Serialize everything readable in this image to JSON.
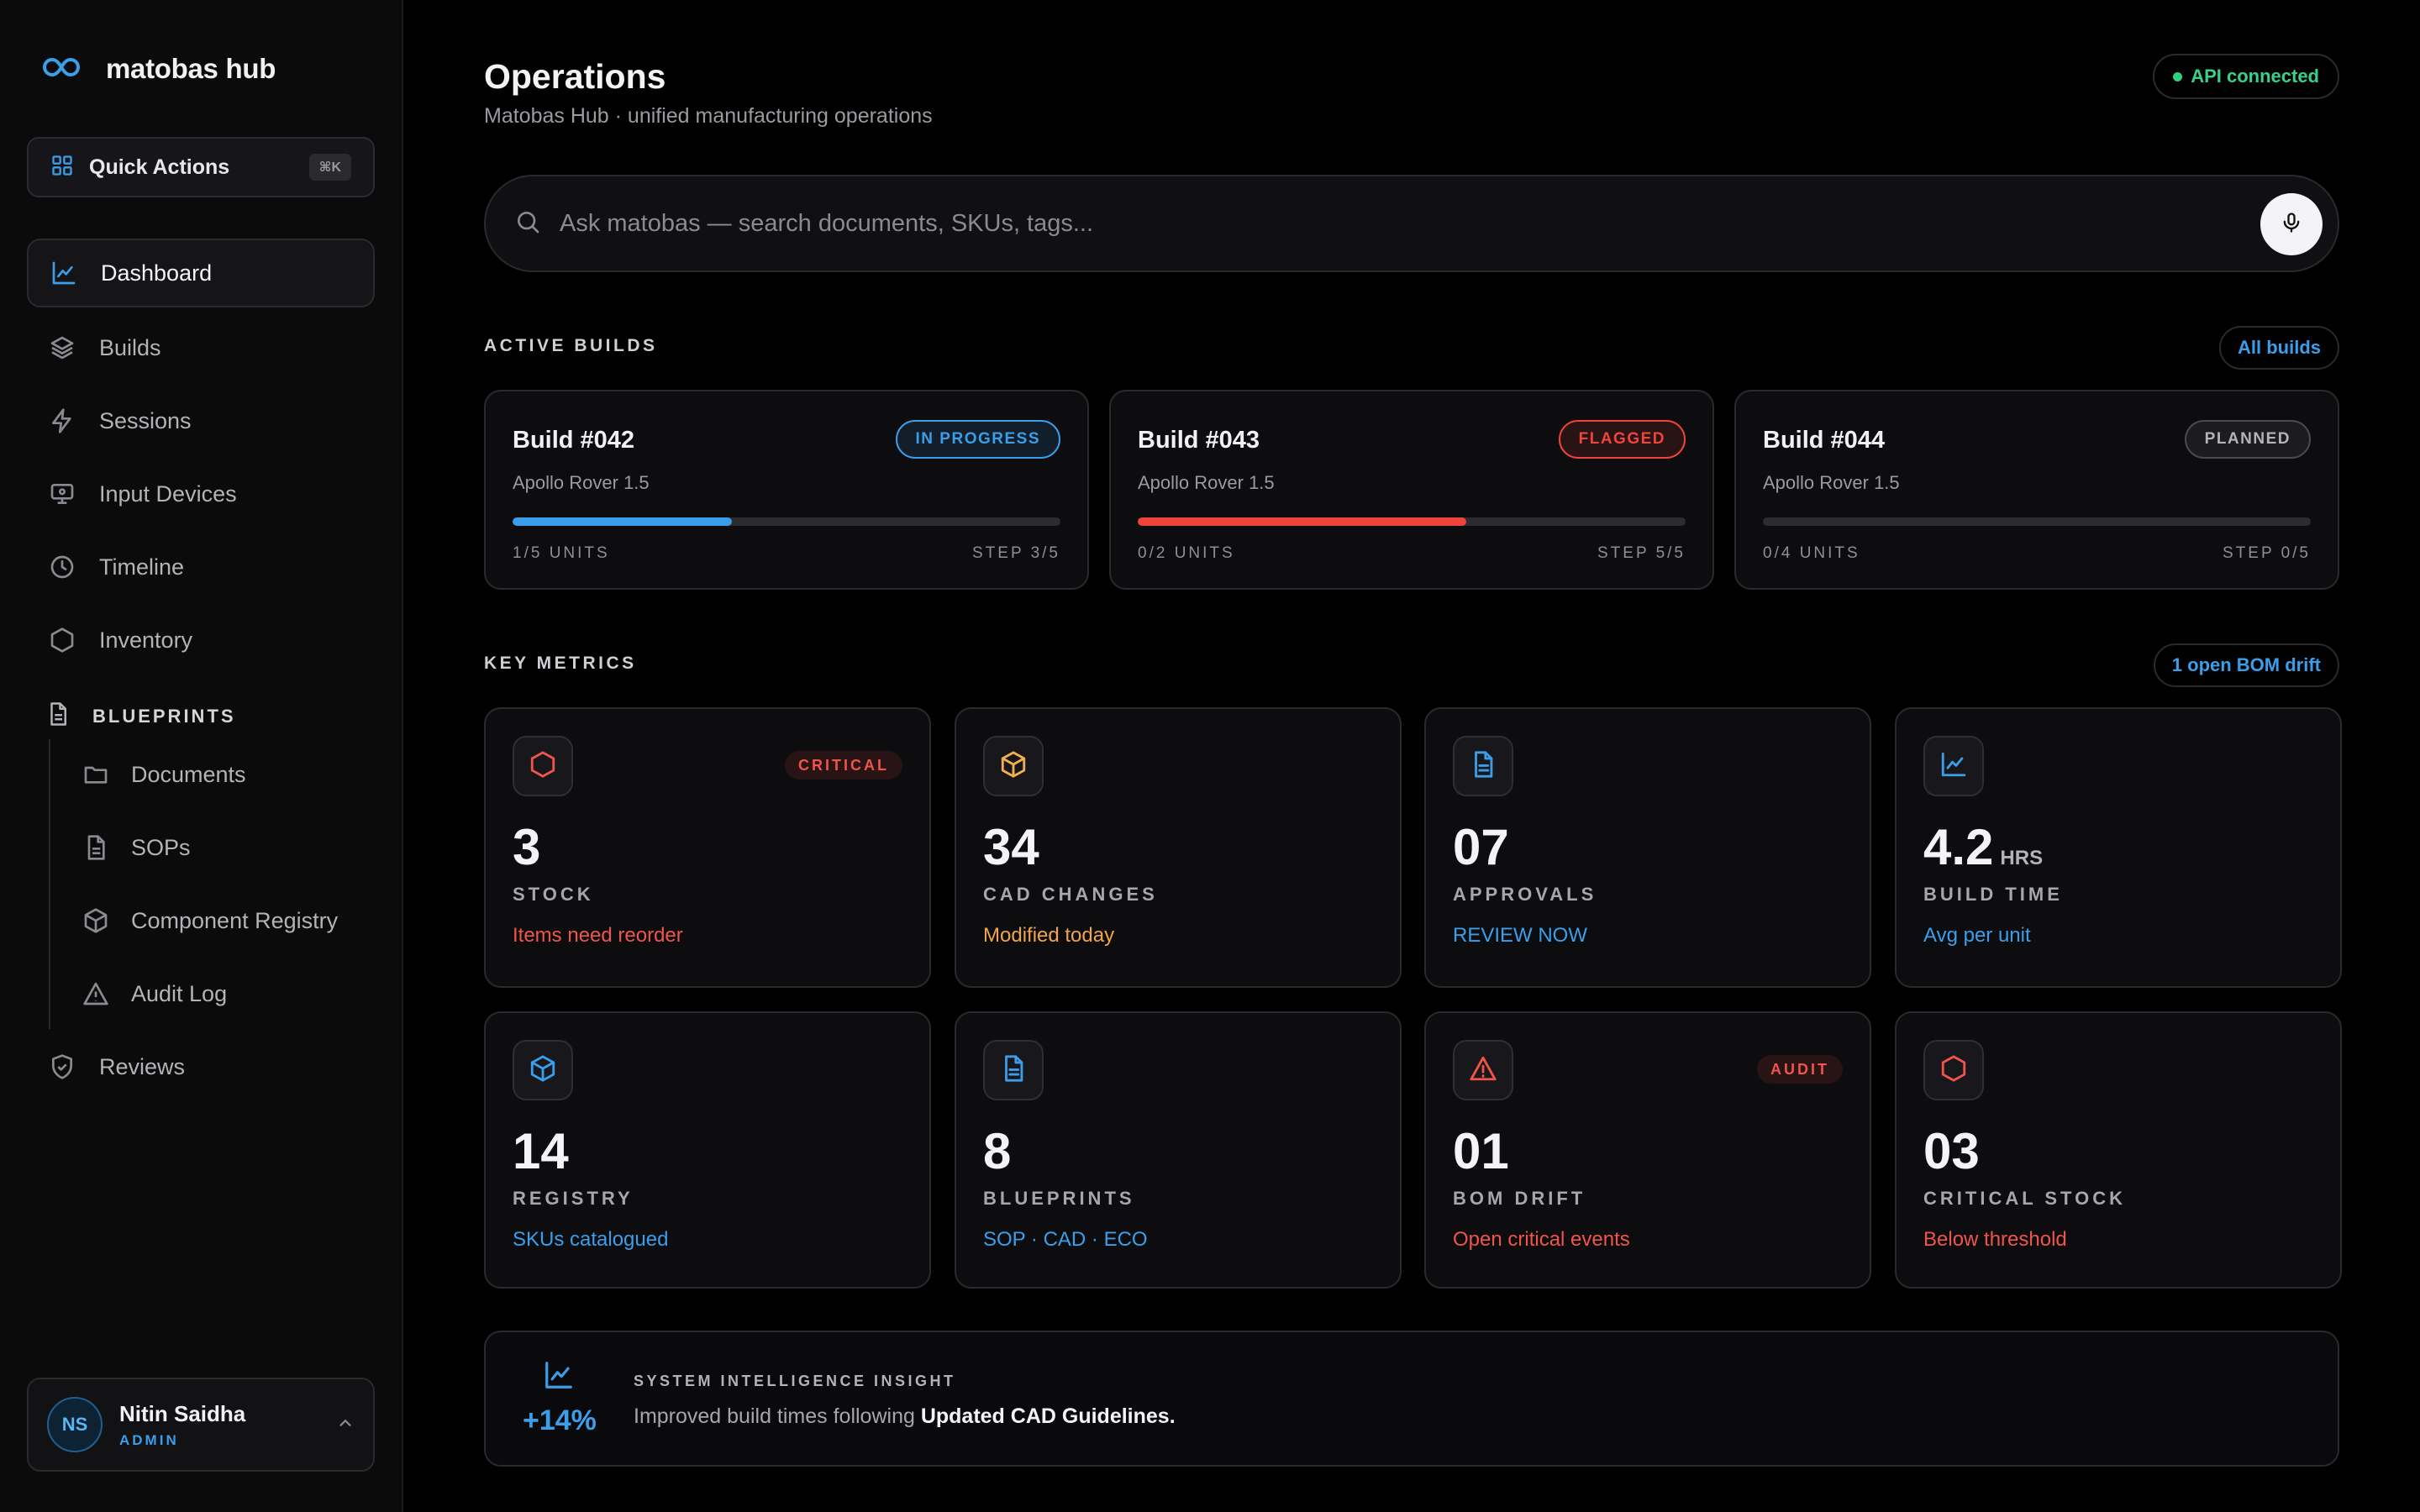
{
  "sidebar": {
    "brand": "matobas hub",
    "quick_actions": {
      "label": "Quick Actions",
      "shortcut": "⌘K"
    },
    "nav": [
      {
        "label": "Dashboard",
        "icon": "chart-line-icon",
        "active": true
      },
      {
        "label": "Builds",
        "icon": "layers-icon"
      },
      {
        "label": "Sessions",
        "icon": "lightning-icon"
      },
      {
        "label": "Input Devices",
        "icon": "monitor-icon"
      },
      {
        "label": "Timeline",
        "icon": "clock-icon"
      },
      {
        "label": "Inventory",
        "icon": "hexagon-icon"
      }
    ],
    "section": "BLUEPRINTS",
    "sub_nav": [
      {
        "label": "Documents",
        "icon": "folder-icon"
      },
      {
        "label": "SOPs",
        "icon": "document-icon"
      },
      {
        "label": "Component Registry",
        "icon": "cube-icon"
      },
      {
        "label": "Audit Log",
        "icon": "warning-icon"
      }
    ],
    "reviews": {
      "label": "Reviews",
      "icon": "shield-check-icon"
    },
    "user": {
      "initials": "NS",
      "name": "Nitin Saidha",
      "role": "ADMIN"
    }
  },
  "header": {
    "title": "Operations",
    "subtitle": "Matobas Hub · unified manufacturing operations",
    "api_status": "API connected"
  },
  "search": {
    "placeholder": "Ask matobas — search documents, SKUs, tags..."
  },
  "builds_section": {
    "label": "ACTIVE BUILDS",
    "link": "All builds",
    "builds": [
      {
        "name": "Build #042",
        "product": "Apollo Rover 1.5",
        "status": "IN PROGRESS",
        "status_color": "#3b9eea",
        "progress": 0.4,
        "units": "1/5 UNITS",
        "step": "STEP 3/5"
      },
      {
        "name": "Build #043",
        "product": "Apollo Rover 1.5",
        "status": "FLAGGED",
        "status_color": "#f0443a",
        "progress": 0.6,
        "units": "0/2 UNITS",
        "step": "STEP 5/5"
      },
      {
        "name": "Build #044",
        "product": "Apollo Rover 1.5",
        "status": "PLANNED",
        "status_color": "#b3b3b8",
        "progress": 0.0,
        "units": "0/4 UNITS",
        "step": "STEP 0/5"
      }
    ]
  },
  "metrics_section": {
    "label": "KEY METRICS",
    "link": "1 open BOM drift",
    "metrics": [
      {
        "value": "3",
        "unit": "",
        "label": "STOCK",
        "note": "Items need reorder",
        "note_color": "#f0544a",
        "icon": "hexagon-icon",
        "icon_color": "#f0544a",
        "tag": "CRITICAL"
      },
      {
        "value": "34",
        "unit": "",
        "label": "CAD CHANGES",
        "note": "Modified today",
        "note_color": "#f0a54a",
        "icon": "cube-icon",
        "icon_color": "#f0b050",
        "tag": ""
      },
      {
        "value": "07",
        "unit": "",
        "label": "APPROVALS",
        "note": "REVIEW NOW",
        "note_color": "#3b9eea",
        "icon": "document-icon",
        "icon_color": "#3b9eea",
        "tag": ""
      },
      {
        "value": "4.2",
        "unit": "HRS",
        "label": "BUILD TIME",
        "note": "Avg per unit",
        "note_color": "#3b9eea",
        "icon": "chart-line-icon",
        "icon_color": "#3b9eea",
        "tag": ""
      },
      {
        "value": "14",
        "unit": "",
        "label": "REGISTRY",
        "note": "SKUs catalogued",
        "note_color": "#3b9eea",
        "icon": "cube-icon",
        "icon_color": "#3b9eea",
        "tag": ""
      },
      {
        "value": "8",
        "unit": "",
        "label": "BLUEPRINTS",
        "note": "SOP · CAD · ECO",
        "note_color": "#3b9eea",
        "icon": "document-icon",
        "icon_color": "#3b9eea",
        "tag": ""
      },
      {
        "value": "01",
        "unit": "",
        "label": "BOM DRIFT",
        "note": "Open critical events",
        "note_color": "#f0544a",
        "icon": "warning-icon",
        "icon_color": "#f0544a",
        "tag": "AUDIT"
      },
      {
        "value": "03",
        "unit": "",
        "label": "CRITICAL STOCK",
        "note": "Below threshold",
        "note_color": "#f0544a",
        "icon": "hexagon-icon",
        "icon_color": "#f0544a",
        "tag": ""
      }
    ]
  },
  "insight": {
    "percent": "+14%",
    "heading": "SYSTEM INTELLIGENCE INSIGHT",
    "text": "Improved build times following ",
    "emphasis": "Updated CAD Guidelines."
  }
}
